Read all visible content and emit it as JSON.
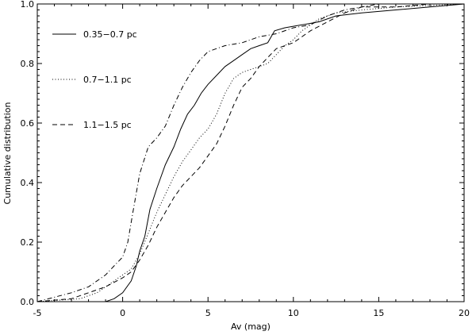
{
  "chart_data": {
    "type": "line",
    "xlabel": "Av (mag)",
    "ylabel": "Cumulative distribution",
    "xlim": [
      -5,
      20
    ],
    "ylim": [
      0,
      1
    ],
    "x_ticks": [
      "-5",
      "0",
      "5",
      "10",
      "15",
      "20"
    ],
    "y_ticks": [
      "0.0",
      "0.2",
      "0.4",
      "0.6",
      "0.8",
      "1.0"
    ],
    "legend_position": "top-left",
    "series": [
      {
        "name": "0.35–0.7 pc",
        "dash": "solid",
        "points": [
          [
            -5,
            0.0
          ],
          [
            -1.0,
            0.0
          ],
          [
            -0.5,
            0.01
          ],
          [
            0,
            0.03
          ],
          [
            0.5,
            0.07
          ],
          [
            0.8,
            0.12
          ],
          [
            1.0,
            0.17
          ],
          [
            1.3,
            0.22
          ],
          [
            1.6,
            0.31
          ],
          [
            2.0,
            0.38
          ],
          [
            2.5,
            0.46
          ],
          [
            3.0,
            0.52
          ],
          [
            3.4,
            0.58
          ],
          [
            3.8,
            0.63
          ],
          [
            4.2,
            0.66
          ],
          [
            4.6,
            0.7
          ],
          [
            5.0,
            0.73
          ],
          [
            5.5,
            0.76
          ],
          [
            6.0,
            0.79
          ],
          [
            6.5,
            0.81
          ],
          [
            7.0,
            0.83
          ],
          [
            7.5,
            0.85
          ],
          [
            8.0,
            0.86
          ],
          [
            8.5,
            0.87
          ],
          [
            8.9,
            0.91
          ],
          [
            9.5,
            0.92
          ],
          [
            10.5,
            0.93
          ],
          [
            11.5,
            0.94
          ],
          [
            12.5,
            0.96
          ],
          [
            14.0,
            0.97
          ],
          [
            16.0,
            0.98
          ],
          [
            18.0,
            0.99
          ],
          [
            20.0,
            1.0
          ]
        ]
      },
      {
        "name": "0.7–1.1 pc",
        "dash": "dotted",
        "points": [
          [
            -5,
            0.0
          ],
          [
            -2.5,
            0.01
          ],
          [
            -1.5,
            0.03
          ],
          [
            -1.0,
            0.05
          ],
          [
            -0.5,
            0.07
          ],
          [
            0,
            0.09
          ],
          [
            0.5,
            0.11
          ],
          [
            1.0,
            0.16
          ],
          [
            1.5,
            0.23
          ],
          [
            2.0,
            0.3
          ],
          [
            2.5,
            0.36
          ],
          [
            3.0,
            0.42
          ],
          [
            3.5,
            0.47
          ],
          [
            4.0,
            0.51
          ],
          [
            4.5,
            0.55
          ],
          [
            5.0,
            0.58
          ],
          [
            5.5,
            0.63
          ],
          [
            6.0,
            0.7
          ],
          [
            6.5,
            0.75
          ],
          [
            7.0,
            0.77
          ],
          [
            7.5,
            0.78
          ],
          [
            8.0,
            0.79
          ],
          [
            8.5,
            0.8
          ],
          [
            9.0,
            0.83
          ],
          [
            9.5,
            0.86
          ],
          [
            10.0,
            0.88
          ],
          [
            10.5,
            0.91
          ],
          [
            11.5,
            0.95
          ],
          [
            12.5,
            0.97
          ],
          [
            14.0,
            0.98
          ],
          [
            16.0,
            0.99
          ],
          [
            18.0,
            0.995
          ],
          [
            20.0,
            1.0
          ]
        ]
      },
      {
        "name": "1.1–1.5 pc",
        "dash": "dashed",
        "points": [
          [
            -5,
            0.0
          ],
          [
            -3.0,
            0.01
          ],
          [
            -2.0,
            0.03
          ],
          [
            -1.0,
            0.05
          ],
          [
            0,
            0.08
          ],
          [
            0.5,
            0.1
          ],
          [
            1.0,
            0.14
          ],
          [
            1.5,
            0.19
          ],
          [
            2.0,
            0.25
          ],
          [
            2.5,
            0.3
          ],
          [
            3.0,
            0.35
          ],
          [
            3.5,
            0.39
          ],
          [
            4.0,
            0.42
          ],
          [
            4.5,
            0.45
          ],
          [
            5.0,
            0.49
          ],
          [
            5.5,
            0.53
          ],
          [
            6.0,
            0.59
          ],
          [
            6.5,
            0.66
          ],
          [
            7.0,
            0.72
          ],
          [
            7.5,
            0.75
          ],
          [
            8.0,
            0.79
          ],
          [
            8.5,
            0.82
          ],
          [
            9.0,
            0.85
          ],
          [
            10.0,
            0.87
          ],
          [
            10.5,
            0.89
          ],
          [
            11.0,
            0.91
          ],
          [
            12.0,
            0.94
          ],
          [
            13.0,
            0.97
          ],
          [
            14.0,
            0.99
          ],
          [
            16.0,
            0.99
          ],
          [
            18.0,
            1.0
          ],
          [
            20.0,
            1.0
          ]
        ]
      },
      {
        "name": "",
        "dash": "dashdot",
        "points": [
          [
            -5,
            0.0
          ],
          [
            -3.0,
            0.03
          ],
          [
            -2.0,
            0.05
          ],
          [
            -1.0,
            0.09
          ],
          [
            -0.5,
            0.12
          ],
          [
            0,
            0.15
          ],
          [
            0.3,
            0.2
          ],
          [
            0.6,
            0.3
          ],
          [
            1.0,
            0.43
          ],
          [
            1.5,
            0.52
          ],
          [
            2.0,
            0.55
          ],
          [
            2.5,
            0.59
          ],
          [
            3.0,
            0.66
          ],
          [
            3.5,
            0.72
          ],
          [
            4.0,
            0.77
          ],
          [
            4.5,
            0.81
          ],
          [
            5.0,
            0.84
          ],
          [
            6.0,
            0.86
          ],
          [
            7.0,
            0.87
          ],
          [
            8.0,
            0.89
          ],
          [
            9.0,
            0.9
          ],
          [
            10.0,
            0.92
          ],
          [
            11.0,
            0.93
          ],
          [
            12.0,
            0.96
          ],
          [
            13.0,
            0.98
          ],
          [
            14.0,
            0.99
          ],
          [
            15.0,
            1.0
          ],
          [
            20.0,
            1.0
          ]
        ]
      }
    ],
    "legend": [
      {
        "label": "0.35−0.7 pc",
        "dash": "solid"
      },
      {
        "label": "0.7−1.1 pc",
        "dash": "dotted"
      },
      {
        "label": "1.1−1.5 pc",
        "dash": "dashed"
      }
    ]
  }
}
